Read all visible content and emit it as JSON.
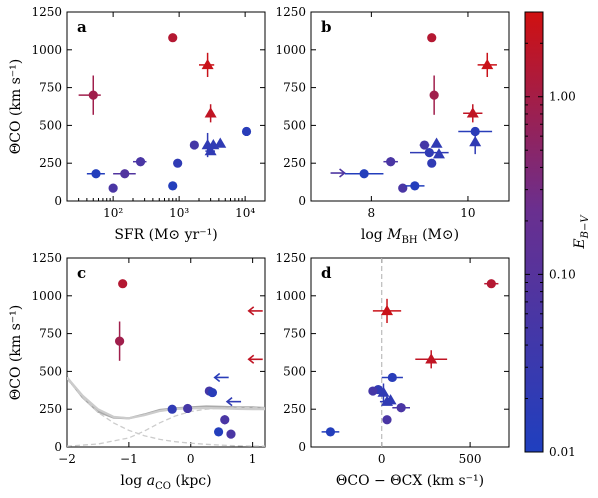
{
  "colorbar": {
    "label_main": "E",
    "label_sub": "B−V",
    "scale": "log",
    "range": [
      0.01,
      3.0
    ],
    "ticks": [
      {
        "value": 1.0,
        "label": "1.00"
      },
      {
        "value": 0.1,
        "label": "0.10"
      },
      {
        "value": 0.01,
        "label": "0.01"
      }
    ],
    "colors": {
      "low": "#1f3fbf",
      "mid": "#6a2f8f",
      "high": "#d01010"
    }
  },
  "chart_data": [
    {
      "id": "a",
      "type": "scatter",
      "panel_letter": "a",
      "xlabel": "SFR (M⊙ yr⁻¹)",
      "ylabel": "ΘCO (km s⁻¹)",
      "xscale": "log",
      "xlim": [
        20,
        20000
      ],
      "ylim": [
        0,
        1250
      ],
      "xticks": [
        {
          "v": 100,
          "label": "10²"
        },
        {
          "v": 1000,
          "label": "10³"
        },
        {
          "v": 10000,
          "label": "10⁴"
        }
      ],
      "yticks": [
        0,
        250,
        500,
        750,
        1000,
        1250
      ],
      "points": [
        {
          "x": 50,
          "y": 700,
          "xerr": [
            20,
            15
          ],
          "yerr": 130,
          "ebv": 0.9,
          "marker": "circle"
        },
        {
          "x": 55,
          "y": 180,
          "xerr": [
            15,
            20
          ],
          "ebv": 0.012,
          "marker": "circle"
        },
        {
          "x": 100,
          "y": 85,
          "ebv": 0.06,
          "marker": "circle"
        },
        {
          "x": 150,
          "y": 180,
          "xerr": [
            50,
            70
          ],
          "ebv": 0.08,
          "marker": "circle"
        },
        {
          "x": 260,
          "y": 260,
          "xerr": [
            60,
            60
          ],
          "yerr": 30,
          "ebv": 0.06,
          "marker": "circle"
        },
        {
          "x": 800,
          "y": 1080,
          "ebv": 1.5,
          "marker": "circle"
        },
        {
          "x": 800,
          "y": 100,
          "ebv": 0.012,
          "marker": "circle"
        },
        {
          "x": 950,
          "y": 250,
          "ebv": 0.02,
          "marker": "circle"
        },
        {
          "x": 1700,
          "y": 370,
          "ebv": 0.05,
          "marker": "circle"
        },
        {
          "x": 2700,
          "y": 900,
          "xerr": [
            700,
            700
          ],
          "yerr": 80,
          "ebv": 2.5,
          "marker": "triangle"
        },
        {
          "x": 3000,
          "y": 580,
          "yerr": 60,
          "ebv": 2.0,
          "marker": "triangle"
        },
        {
          "x": 2700,
          "y": 370,
          "yerr": 80,
          "ebv": 0.02,
          "marker": "triangle"
        },
        {
          "x": 3000,
          "y": 330,
          "xerr": [
            500,
            500
          ],
          "ebv": 0.02,
          "marker": "triangle"
        },
        {
          "x": 3300,
          "y": 370,
          "ebv": 0.02,
          "marker": "triangle"
        },
        {
          "x": 4200,
          "y": 380,
          "ebv": 0.02,
          "marker": "triangle"
        },
        {
          "x": 10500,
          "y": 460,
          "ebv": 0.015,
          "marker": "circle"
        }
      ]
    },
    {
      "id": "b",
      "type": "scatter",
      "panel_letter": "b",
      "xlabel": "log M_BH (M⊙)",
      "xlabel_parts": {
        "pre": "log ",
        "var": "M",
        "sub": "BH",
        "post": " (M⊙)"
      },
      "ylabel": "",
      "xscale": "linear",
      "xlim": [
        6.75,
        10.85
      ],
      "ylim": [
        0,
        1250
      ],
      "xticks": [
        {
          "v": 8,
          "label": "8"
        },
        {
          "v": 10,
          "label": "10"
        }
      ],
      "yticks": [
        0,
        250,
        500,
        750,
        1000,
        1250
      ],
      "points": [
        {
          "x": 7.85,
          "y": 180,
          "xerr": [
            0.4,
            0.4
          ],
          "ebv": 0.012,
          "marker": "circle"
        },
        {
          "x": 8.4,
          "y": 260,
          "xerr": [
            0.15,
            0.15
          ],
          "yerr": 30,
          "ebv": 0.06,
          "marker": "circle"
        },
        {
          "x": 8.65,
          "y": 85,
          "ebv": 0.06,
          "marker": "circle"
        },
        {
          "x": 8.9,
          "y": 100,
          "xerr": [
            0.2,
            0.2
          ],
          "ebv": 0.012,
          "marker": "circle"
        },
        {
          "x": 9.1,
          "y": 370,
          "xerr": [
            0.1,
            0.1
          ],
          "ebv": 0.05,
          "marker": "circle"
        },
        {
          "x": 9.2,
          "y": 320,
          "xerr": [
            0.4,
            0.4
          ],
          "ebv": 0.02,
          "marker": "circle"
        },
        {
          "x": 9.25,
          "y": 250,
          "ebv": 0.02,
          "marker": "circle"
        },
        {
          "x": 9.25,
          "y": 1080,
          "ebv": 1.5,
          "marker": "circle"
        },
        {
          "x": 9.3,
          "y": 700,
          "yerr": 130,
          "ebv": 0.9,
          "marker": "circle"
        },
        {
          "x": 9.35,
          "y": 380,
          "ebv": 0.02,
          "marker": "triangle"
        },
        {
          "x": 9.4,
          "y": 310,
          "ebv": 0.02,
          "marker": "triangle"
        },
        {
          "x": 10.1,
          "y": 580,
          "xerr": [
            0.2,
            0.2
          ],
          "yerr": 60,
          "ebv": 2.0,
          "marker": "triangle"
        },
        {
          "x": 10.15,
          "y": 460,
          "xerr": [
            0.35,
            0.35
          ],
          "ebv": 0.015,
          "marker": "circle"
        },
        {
          "x": 10.15,
          "y": 390,
          "yerr": 80,
          "ebv": 0.02,
          "marker": "triangle"
        },
        {
          "x": 10.4,
          "y": 900,
          "xerr": [
            0.2,
            0.2
          ],
          "yerr": 80,
          "ebv": 2.5,
          "marker": "triangle"
        }
      ],
      "arrows": [
        {
          "x": 7.3,
          "y": 185,
          "dir": "right",
          "ebv": 0.07
        }
      ]
    },
    {
      "id": "c",
      "type": "scatter",
      "panel_letter": "c",
      "xlabel": "log a_CO (kpc)",
      "xlabel_parts": {
        "pre": "log ",
        "var": "a",
        "sub": "CO",
        "post": " (kpc)"
      },
      "ylabel": "ΘCO (km s⁻¹)",
      "xscale": "linear",
      "xlim": [
        -2,
        1.2
      ],
      "ylim": [
        0,
        1250
      ],
      "xticks": [
        {
          "v": -2,
          "label": "−2"
        },
        {
          "v": -1,
          "label": "−1"
        },
        {
          "v": 0,
          "label": "0"
        },
        {
          "v": 1,
          "label": "1"
        }
      ],
      "yticks": [
        0,
        250,
        500,
        750,
        1000,
        1250
      ],
      "points": [
        {
          "x": -1.1,
          "y": 1080,
          "ebv": 1.5,
          "marker": "circle"
        },
        {
          "x": -1.15,
          "y": 700,
          "yerr": 130,
          "ebv": 0.9,
          "marker": "circle"
        },
        {
          "x": -0.3,
          "y": 250,
          "ebv": 0.02,
          "marker": "circle"
        },
        {
          "x": -0.05,
          "y": 255,
          "ebv": 0.05,
          "marker": "circle"
        },
        {
          "x": 0.3,
          "y": 370,
          "ebv": 0.05,
          "marker": "circle"
        },
        {
          "x": 0.35,
          "y": 360,
          "ebv": 0.015,
          "marker": "circle"
        },
        {
          "x": 0.45,
          "y": 100,
          "ebv": 0.012,
          "marker": "circle"
        },
        {
          "x": 0.55,
          "y": 180,
          "yerr": 30,
          "ebv": 0.06,
          "marker": "circle"
        },
        {
          "x": 0.65,
          "y": 85,
          "ebv": 0.06,
          "marker": "circle"
        }
      ],
      "arrows": [
        {
          "x": 1.05,
          "y": 900,
          "dir": "left",
          "ebv": 2.0
        },
        {
          "x": 1.05,
          "y": 580,
          "dir": "left",
          "ebv": 2.0
        },
        {
          "x": 0.5,
          "y": 460,
          "dir": "left",
          "ebv": 0.015
        },
        {
          "x": 0.7,
          "y": 300,
          "dir": "left",
          "ebv": 0.02
        }
      ],
      "curves": [
        {
          "style": "solid",
          "color": "#aaaaaa",
          "x": [
            -2,
            -1.75,
            -1.5,
            -1.25,
            -1,
            -0.75,
            -0.5,
            -0.25,
            0,
            0.25,
            0.5,
            0.75,
            1,
            1.2
          ],
          "y": [
            460,
            330,
            235,
            195,
            190,
            215,
            245,
            255,
            262,
            268,
            265,
            262,
            262,
            258
          ]
        },
        {
          "style": "solid",
          "color": "#cccccc",
          "x": [
            -2,
            -1.75,
            -1.5,
            -1.25,
            -1,
            -0.75,
            -0.5,
            -0.25,
            0,
            0.25,
            0.5,
            0.75,
            1,
            1.2
          ],
          "y": [
            460,
            340,
            250,
            200,
            190,
            210,
            238,
            252,
            255,
            258,
            255,
            252,
            250,
            250
          ]
        },
        {
          "style": "dashed",
          "color": "#cccccc",
          "x": [
            -2,
            -1.75,
            -1.5,
            -1.25,
            -1,
            -0.75,
            -0.5,
            -0.25,
            0,
            0.25,
            0.5,
            0.75,
            1,
            1.2
          ],
          "y": [
            450,
            330,
            230,
            160,
            110,
            75,
            50,
            35,
            25,
            18,
            12,
            8,
            6,
            5
          ]
        },
        {
          "style": "dashed",
          "color": "#cccccc",
          "x": [
            -2,
            -1.5,
            -1,
            -0.75,
            -0.5,
            -0.25,
            0,
            0.25,
            0.5,
            0.75,
            1,
            1.2
          ],
          "y": [
            5,
            20,
            60,
            105,
            160,
            205,
            235,
            250,
            258,
            260,
            260,
            258
          ]
        }
      ]
    },
    {
      "id": "d",
      "type": "scatter",
      "panel_letter": "d",
      "xlabel": "ΘCO − ΘCX (km s⁻¹)",
      "ylabel": "",
      "xscale": "linear",
      "xlim": [
        -400,
        720
      ],
      "ylim": [
        0,
        1250
      ],
      "xticks": [
        {
          "v": 0,
          "label": "0"
        },
        {
          "v": 500,
          "label": "500"
        }
      ],
      "yticks": [
        0,
        250,
        500,
        750,
        1000,
        1250
      ],
      "vline": 0,
      "points": [
        {
          "x": 620,
          "y": 1080,
          "xerr": [
            40,
            40
          ],
          "ebv": 1.5,
          "marker": "circle"
        },
        {
          "x": 30,
          "y": 900,
          "xerr": [
            80,
            80
          ],
          "yerr": 80,
          "ebv": 2.5,
          "marker": "triangle"
        },
        {
          "x": 280,
          "y": 580,
          "xerr": [
            90,
            90
          ],
          "yerr": 60,
          "ebv": 2.0,
          "marker": "triangle"
        },
        {
          "x": 60,
          "y": 460,
          "xerr": [
            60,
            60
          ],
          "ebv": 0.015,
          "marker": "circle"
        },
        {
          "x": -20,
          "y": 380,
          "ebv": 0.02,
          "marker": "circle"
        },
        {
          "x": -50,
          "y": 370,
          "ebv": 0.05,
          "marker": "circle"
        },
        {
          "x": 10,
          "y": 360,
          "yerr": 60,
          "ebv": 0.02,
          "marker": "triangle"
        },
        {
          "x": 30,
          "y": 300,
          "xerr": [
            40,
            40
          ],
          "ebv": 0.02,
          "marker": "triangle"
        },
        {
          "x": 50,
          "y": 310,
          "ebv": 0.02,
          "marker": "triangle"
        },
        {
          "x": 110,
          "y": 260,
          "xerr": [
            50,
            50
          ],
          "yerr": 30,
          "ebv": 0.06,
          "marker": "circle"
        },
        {
          "x": 30,
          "y": 180,
          "ebv": 0.06,
          "marker": "circle"
        },
        {
          "x": -290,
          "y": 100,
          "xerr": [
            50,
            50
          ],
          "ebv": 0.012,
          "marker": "circle"
        }
      ]
    }
  ]
}
